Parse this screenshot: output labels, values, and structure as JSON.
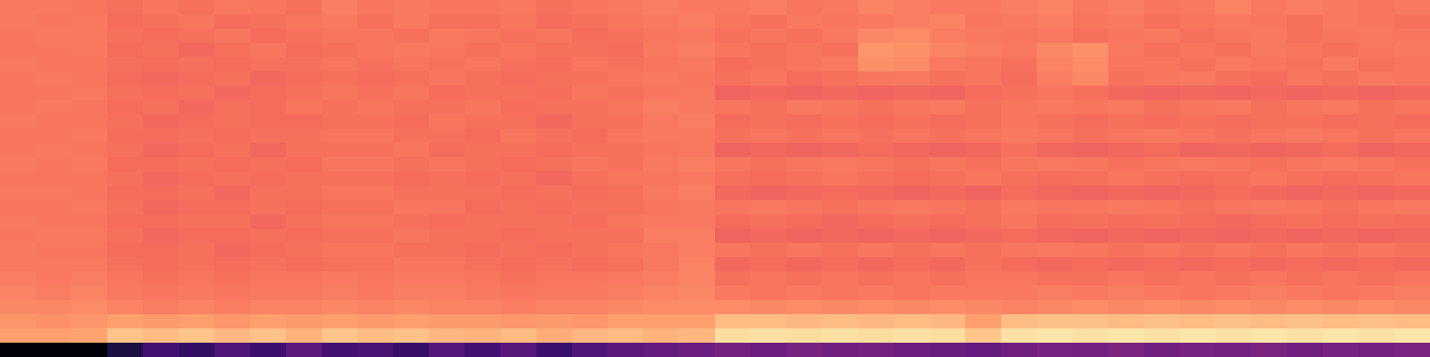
{
  "chart_data": {
    "type": "heatmap",
    "tick_labels": false,
    "color": "magma",
    "color_range": [
      0,
      1
    ],
    "cells": [
      [
        0.72,
        0.72,
        0.71,
        0.7,
        0.71,
        0.7,
        0.72,
        0.71,
        0.7,
        0.73,
        0.71,
        0.72,
        0.71,
        0.71,
        0.72,
        0.7,
        0.71,
        0.72,
        0.73,
        0.72,
        0.72,
        0.73,
        0.71,
        0.72,
        0.74,
        0.73,
        0.72,
        0.72,
        0.73,
        0.74,
        0.72,
        0.73,
        0.71,
        0.72,
        0.74,
        0.72,
        0.73,
        0.72,
        0.71,
        0.72
      ],
      [
        0.72,
        0.71,
        0.72,
        0.69,
        0.7,
        0.71,
        0.69,
        0.7,
        0.71,
        0.72,
        0.7,
        0.72,
        0.7,
        0.7,
        0.71,
        0.69,
        0.7,
        0.71,
        0.72,
        0.73,
        0.71,
        0.7,
        0.72,
        0.71,
        0.72,
        0.73,
        0.74,
        0.71,
        0.72,
        0.73,
        0.71,
        0.72,
        0.7,
        0.71,
        0.72,
        0.71,
        0.7,
        0.72,
        0.71,
        0.7
      ],
      [
        0.71,
        0.72,
        0.72,
        0.7,
        0.69,
        0.7,
        0.71,
        0.69,
        0.7,
        0.71,
        0.71,
        0.7,
        0.72,
        0.71,
        0.7,
        0.71,
        0.69,
        0.7,
        0.71,
        0.72,
        0.7,
        0.71,
        0.7,
        0.72,
        0.75,
        0.76,
        0.73,
        0.72,
        0.71,
        0.72,
        0.7,
        0.71,
        0.72,
        0.7,
        0.71,
        0.72,
        0.7,
        0.71,
        0.72,
        0.71
      ],
      [
        0.71,
        0.71,
        0.72,
        0.69,
        0.7,
        0.68,
        0.7,
        0.71,
        0.69,
        0.7,
        0.71,
        0.72,
        0.71,
        0.7,
        0.71,
        0.7,
        0.7,
        0.69,
        0.72,
        0.73,
        0.71,
        0.7,
        0.71,
        0.7,
        0.78,
        0.77,
        0.74,
        0.73,
        0.72,
        0.75,
        0.77,
        0.72,
        0.7,
        0.71,
        0.7,
        0.72,
        0.71,
        0.7,
        0.71,
        0.72
      ],
      [
        0.72,
        0.71,
        0.71,
        0.7,
        0.69,
        0.7,
        0.69,
        0.7,
        0.7,
        0.71,
        0.7,
        0.71,
        0.7,
        0.71,
        0.7,
        0.69,
        0.71,
        0.7,
        0.71,
        0.72,
        0.69,
        0.7,
        0.71,
        0.72,
        0.77,
        0.76,
        0.72,
        0.71,
        0.7,
        0.74,
        0.76,
        0.71,
        0.71,
        0.7,
        0.72,
        0.71,
        0.7,
        0.72,
        0.7,
        0.71
      ],
      [
        0.71,
        0.72,
        0.71,
        0.69,
        0.68,
        0.69,
        0.7,
        0.68,
        0.69,
        0.7,
        0.69,
        0.7,
        0.71,
        0.7,
        0.69,
        0.7,
        0.7,
        0.71,
        0.72,
        0.71,
        0.7,
        0.71,
        0.69,
        0.7,
        0.71,
        0.72,
        0.7,
        0.71,
        0.69,
        0.73,
        0.75,
        0.7,
        0.71,
        0.72,
        0.7,
        0.69,
        0.71,
        0.7,
        0.72,
        0.71
      ],
      [
        0.71,
        0.71,
        0.72,
        0.7,
        0.69,
        0.7,
        0.68,
        0.69,
        0.7,
        0.71,
        0.7,
        0.71,
        0.69,
        0.7,
        0.7,
        0.69,
        0.71,
        0.7,
        0.71,
        0.72,
        0.67,
        0.68,
        0.67,
        0.68,
        0.67,
        0.68,
        0.67,
        0.69,
        0.7,
        0.71,
        0.7,
        0.68,
        0.67,
        0.68,
        0.67,
        0.68,
        0.67,
        0.68,
        0.67,
        0.68
      ],
      [
        0.71,
        0.72,
        0.71,
        0.69,
        0.7,
        0.68,
        0.7,
        0.69,
        0.71,
        0.7,
        0.71,
        0.7,
        0.7,
        0.71,
        0.69,
        0.7,
        0.7,
        0.71,
        0.73,
        0.72,
        0.71,
        0.7,
        0.72,
        0.71,
        0.7,
        0.71,
        0.72,
        0.7,
        0.71,
        0.72,
        0.71,
        0.72,
        0.7,
        0.71,
        0.72,
        0.7,
        0.71,
        0.72,
        0.7,
        0.71
      ],
      [
        0.72,
        0.71,
        0.71,
        0.7,
        0.68,
        0.69,
        0.7,
        0.69,
        0.69,
        0.7,
        0.7,
        0.69,
        0.71,
        0.7,
        0.7,
        0.68,
        0.7,
        0.7,
        0.72,
        0.73,
        0.69,
        0.7,
        0.69,
        0.7,
        0.69,
        0.7,
        0.69,
        0.7,
        0.71,
        0.7,
        0.69,
        0.7,
        0.69,
        0.7,
        0.69,
        0.7,
        0.7,
        0.69,
        0.7,
        0.69
      ],
      [
        0.71,
        0.71,
        0.72,
        0.69,
        0.69,
        0.7,
        0.69,
        0.7,
        0.7,
        0.71,
        0.71,
        0.7,
        0.7,
        0.69,
        0.71,
        0.7,
        0.69,
        0.71,
        0.72,
        0.72,
        0.7,
        0.71,
        0.7,
        0.71,
        0.7,
        0.71,
        0.7,
        0.71,
        0.72,
        0.71,
        0.7,
        0.71,
        0.72,
        0.71,
        0.7,
        0.71,
        0.72,
        0.71,
        0.7,
        0.71
      ],
      [
        0.71,
        0.72,
        0.71,
        0.7,
        0.68,
        0.69,
        0.7,
        0.68,
        0.7,
        0.7,
        0.7,
        0.71,
        0.69,
        0.7,
        0.7,
        0.69,
        0.7,
        0.7,
        0.71,
        0.72,
        0.67,
        0.68,
        0.67,
        0.68,
        0.69,
        0.68,
        0.67,
        0.68,
        0.7,
        0.68,
        0.67,
        0.68,
        0.69,
        0.67,
        0.68,
        0.67,
        0.68,
        0.69,
        0.67,
        0.68
      ],
      [
        0.72,
        0.71,
        0.72,
        0.69,
        0.69,
        0.7,
        0.69,
        0.7,
        0.69,
        0.71,
        0.71,
        0.7,
        0.71,
        0.7,
        0.69,
        0.7,
        0.71,
        0.7,
        0.72,
        0.73,
        0.71,
        0.7,
        0.71,
        0.72,
        0.71,
        0.7,
        0.71,
        0.7,
        0.71,
        0.72,
        0.71,
        0.7,
        0.71,
        0.72,
        0.71,
        0.7,
        0.71,
        0.72,
        0.71,
        0.7
      ],
      [
        0.71,
        0.71,
        0.71,
        0.7,
        0.68,
        0.69,
        0.7,
        0.69,
        0.7,
        0.7,
        0.7,
        0.69,
        0.7,
        0.69,
        0.7,
        0.68,
        0.7,
        0.71,
        0.71,
        0.72,
        0.7,
        0.69,
        0.7,
        0.71,
        0.7,
        0.69,
        0.7,
        0.71,
        0.7,
        0.69,
        0.7,
        0.71,
        0.7,
        0.69,
        0.7,
        0.71,
        0.7,
        0.69,
        0.7,
        0.71
      ],
      [
        0.72,
        0.72,
        0.71,
        0.69,
        0.69,
        0.7,
        0.68,
        0.7,
        0.7,
        0.71,
        0.71,
        0.7,
        0.7,
        0.7,
        0.69,
        0.7,
        0.69,
        0.7,
        0.72,
        0.73,
        0.68,
        0.67,
        0.68,
        0.69,
        0.68,
        0.67,
        0.68,
        0.67,
        0.69,
        0.68,
        0.67,
        0.68,
        0.67,
        0.68,
        0.69,
        0.68,
        0.67,
        0.68,
        0.67,
        0.68
      ],
      [
        0.71,
        0.71,
        0.72,
        0.7,
        0.68,
        0.69,
        0.69,
        0.7,
        0.69,
        0.7,
        0.7,
        0.71,
        0.71,
        0.69,
        0.7,
        0.69,
        0.7,
        0.7,
        0.71,
        0.72,
        0.71,
        0.72,
        0.71,
        0.7,
        0.71,
        0.72,
        0.71,
        0.7,
        0.72,
        0.71,
        0.71,
        0.72,
        0.71,
        0.7,
        0.71,
        0.72,
        0.71,
        0.7,
        0.71,
        0.72
      ],
      [
        0.72,
        0.71,
        0.71,
        0.69,
        0.69,
        0.7,
        0.7,
        0.68,
        0.7,
        0.71,
        0.71,
        0.7,
        0.69,
        0.7,
        0.7,
        0.7,
        0.69,
        0.71,
        0.72,
        0.72,
        0.69,
        0.7,
        0.69,
        0.68,
        0.69,
        0.7,
        0.69,
        0.7,
        0.71,
        0.69,
        0.7,
        0.69,
        0.7,
        0.69,
        0.68,
        0.69,
        0.7,
        0.69,
        0.7,
        0.69
      ],
      [
        0.71,
        0.72,
        0.72,
        0.7,
        0.68,
        0.69,
        0.69,
        0.7,
        0.69,
        0.7,
        0.7,
        0.71,
        0.7,
        0.7,
        0.69,
        0.7,
        0.7,
        0.7,
        0.73,
        0.73,
        0.67,
        0.68,
        0.67,
        0.68,
        0.67,
        0.68,
        0.67,
        0.68,
        0.69,
        0.68,
        0.67,
        0.68,
        0.67,
        0.68,
        0.67,
        0.68,
        0.67,
        0.68,
        0.67,
        0.68
      ],
      [
        0.72,
        0.71,
        0.71,
        0.69,
        0.69,
        0.7,
        0.68,
        0.69,
        0.7,
        0.71,
        0.71,
        0.7,
        0.7,
        0.69,
        0.7,
        0.69,
        0.7,
        0.71,
        0.72,
        0.73,
        0.71,
        0.7,
        0.71,
        0.7,
        0.71,
        0.7,
        0.71,
        0.7,
        0.71,
        0.72,
        0.71,
        0.7,
        0.71,
        0.7,
        0.71,
        0.7,
        0.71,
        0.7,
        0.71,
        0.7
      ],
      [
        0.72,
        0.72,
        0.72,
        0.7,
        0.69,
        0.7,
        0.69,
        0.7,
        0.69,
        0.7,
        0.7,
        0.71,
        0.71,
        0.7,
        0.69,
        0.7,
        0.69,
        0.7,
        0.72,
        0.74,
        0.68,
        0.69,
        0.68,
        0.69,
        0.68,
        0.69,
        0.68,
        0.7,
        0.69,
        0.68,
        0.69,
        0.68,
        0.69,
        0.68,
        0.69,
        0.68,
        0.69,
        0.68,
        0.69,
        0.68
      ],
      [
        0.73,
        0.72,
        0.73,
        0.71,
        0.7,
        0.71,
        0.7,
        0.71,
        0.71,
        0.72,
        0.71,
        0.72,
        0.72,
        0.71,
        0.7,
        0.71,
        0.71,
        0.72,
        0.73,
        0.74,
        0.7,
        0.71,
        0.7,
        0.71,
        0.7,
        0.71,
        0.7,
        0.71,
        0.71,
        0.7,
        0.7,
        0.71,
        0.7,
        0.71,
        0.7,
        0.71,
        0.7,
        0.71,
        0.7,
        0.71
      ],
      [
        0.74,
        0.73,
        0.74,
        0.72,
        0.71,
        0.72,
        0.71,
        0.72,
        0.72,
        0.73,
        0.72,
        0.73,
        0.73,
        0.72,
        0.71,
        0.72,
        0.72,
        0.73,
        0.74,
        0.75,
        0.72,
        0.71,
        0.72,
        0.71,
        0.72,
        0.71,
        0.72,
        0.72,
        0.72,
        0.73,
        0.72,
        0.73,
        0.72,
        0.71,
        0.72,
        0.73,
        0.72,
        0.71,
        0.72,
        0.73
      ],
      [
        0.75,
        0.75,
        0.76,
        0.74,
        0.73,
        0.74,
        0.73,
        0.74,
        0.74,
        0.75,
        0.74,
        0.75,
        0.74,
        0.74,
        0.73,
        0.74,
        0.74,
        0.75,
        0.76,
        0.76,
        0.76,
        0.75,
        0.76,
        0.75,
        0.76,
        0.75,
        0.76,
        0.75,
        0.74,
        0.75,
        0.76,
        0.75,
        0.76,
        0.75,
        0.76,
        0.75,
        0.76,
        0.75,
        0.76,
        0.75
      ],
      [
        0.78,
        0.77,
        0.78,
        0.8,
        0.79,
        0.8,
        0.78,
        0.8,
        0.79,
        0.8,
        0.79,
        0.8,
        0.79,
        0.79,
        0.78,
        0.79,
        0.78,
        0.8,
        0.8,
        0.8,
        0.86,
        0.86,
        0.85,
        0.86,
        0.85,
        0.86,
        0.85,
        0.8,
        0.86,
        0.87,
        0.87,
        0.86,
        0.87,
        0.86,
        0.87,
        0.86,
        0.87,
        0.86,
        0.87,
        0.86
      ],
      [
        0.8,
        0.8,
        0.81,
        0.88,
        0.86,
        0.88,
        0.85,
        0.87,
        0.84,
        0.88,
        0.86,
        0.87,
        0.85,
        0.84,
        0.86,
        0.83,
        0.85,
        0.86,
        0.84,
        0.85,
        0.93,
        0.94,
        0.93,
        0.94,
        0.93,
        0.94,
        0.93,
        0.88,
        0.94,
        0.95,
        0.94,
        0.95,
        0.94,
        0.95,
        0.94,
        0.95,
        0.94,
        0.95,
        0.94,
        0.95
      ],
      [
        0.01,
        0.01,
        0.01,
        0.12,
        0.22,
        0.18,
        0.25,
        0.2,
        0.28,
        0.22,
        0.24,
        0.19,
        0.26,
        0.22,
        0.27,
        0.2,
        0.25,
        0.28,
        0.3,
        0.32,
        0.34,
        0.32,
        0.35,
        0.33,
        0.34,
        0.32,
        0.31,
        0.3,
        0.33,
        0.35,
        0.34,
        0.36,
        0.33,
        0.35,
        0.34,
        0.36,
        0.33,
        0.35,
        0.34,
        0.36
      ]
    ]
  }
}
